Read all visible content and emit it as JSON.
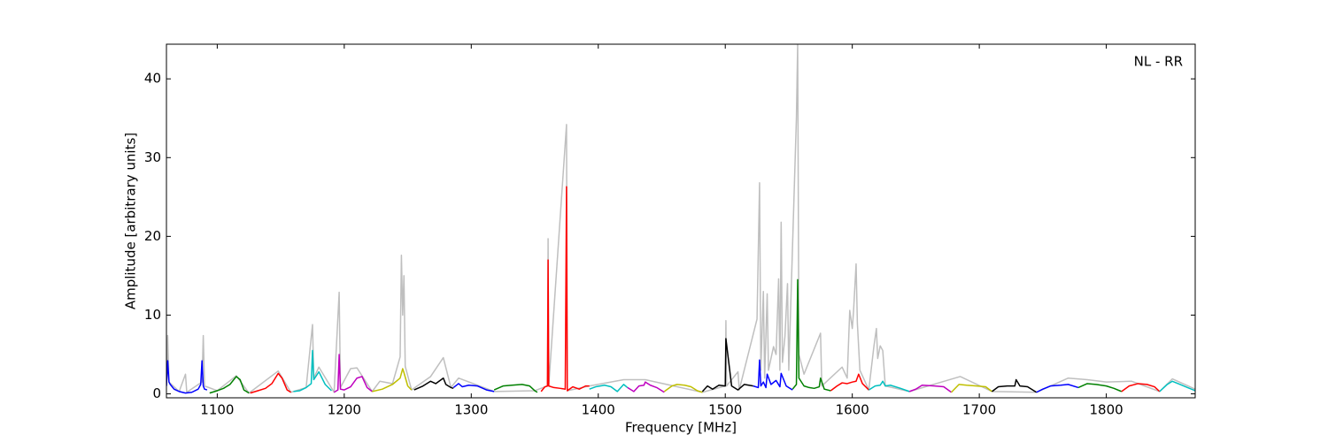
{
  "chart_data": {
    "type": "line",
    "annotation": "NL - RR",
    "x_label": "Frequency [MHz]",
    "y_label": "Amplitude [arbitrary units]",
    "xlim": [
      1060,
      1870
    ],
    "ylim": [
      -0.5,
      44.4
    ],
    "xticks": [
      1100,
      1200,
      1300,
      1400,
      1500,
      1600,
      1700,
      1800
    ],
    "yticks": [
      0,
      10,
      20,
      30,
      40
    ],
    "series": [
      {
        "color": "#bfbfbf",
        "x": [
          1060,
          1061,
          1062,
          1070,
          1075,
          1076,
          1088,
          1089,
          1090,
          1100,
          1115,
          1125,
          1148,
          1158,
          1170,
          1175,
          1176,
          1180,
          1192,
          1196,
          1197,
          1205,
          1210,
          1222,
          1228,
          1238,
          1244,
          1245,
          1246,
          1247,
          1248,
          1253,
          1268,
          1278,
          1284,
          1290,
          1318,
          1350,
          1360,
          1360.5,
          1361,
          1375,
          1375.6,
          1393,
          1420,
          1437,
          1482,
          1500,
          1500.5,
          1501,
          1510,
          1511,
          1525,
          1527,
          1528,
          1530,
          1531,
          1533,
          1534,
          1538,
          1540,
          1542,
          1543,
          1544,
          1545,
          1547,
          1549,
          1550,
          1556,
          1557,
          1558,
          1562,
          1575,
          1576,
          1592,
          1596,
          1598,
          1600,
          1601,
          1603,
          1604,
          1606,
          1613,
          1617,
          1619,
          1620,
          1622,
          1624,
          1626,
          1645,
          1685,
          1710,
          1745,
          1770,
          1785,
          1800,
          1820,
          1842,
          1852,
          1870
        ],
        "values": [
          1.0,
          7.4,
          1.5,
          0.3,
          2.5,
          0.2,
          1.5,
          7.4,
          1.0,
          0.4,
          2.3,
          0.1,
          2.9,
          0.2,
          0.8,
          8.8,
          2.0,
          3.4,
          0.2,
          12.9,
          0.8,
          3.2,
          3.3,
          0.3,
          1.6,
          1.3,
          4.7,
          17.6,
          10,
          15,
          3.5,
          0.5,
          2.2,
          4.6,
          0.8,
          2.0,
          0.3,
          0.4,
          1.0,
          19.7,
          1.0,
          34.2,
          0.4,
          1.0,
          1.8,
          1.8,
          0.2,
          1.0,
          9.3,
          1.0,
          2.8,
          0.5,
          9.5,
          26.8,
          3,
          13,
          2,
          12.7,
          3,
          6,
          5,
          14.6,
          3,
          21.8,
          4,
          7.3,
          14,
          3,
          35,
          44.4,
          5,
          2.5,
          7.7,
          1.0,
          3.4,
          2,
          10.6,
          8.3,
          10.5,
          16.5,
          9,
          3,
          0.5,
          6,
          8.3,
          4.5,
          6.1,
          5.5,
          1.0,
          0.3,
          2.2,
          0.3,
          0.2,
          2,
          1.8,
          1.5,
          1.6,
          0.3,
          1.9,
          0.6
        ]
      },
      {
        "color": "#0000ff",
        "x": [
          1060,
          1061,
          1062,
          1063,
          1066,
          1070,
          1075,
          1080,
          1085,
          1087,
          1088,
          1089,
          1090,
          1092
        ],
        "values": [
          1.0,
          4.2,
          1.5,
          1.2,
          0.6,
          0.3,
          0.1,
          0.2,
          0.6,
          1.2,
          4.2,
          1.0,
          0.6,
          0.5
        ]
      },
      {
        "color": "#008000",
        "x": [
          1094,
          1100,
          1105,
          1110,
          1115,
          1118,
          1121,
          1125
        ],
        "values": [
          0.1,
          0.4,
          0.7,
          1.2,
          2.2,
          1.8,
          0.5,
          0.1
        ]
      },
      {
        "color": "#ff0000",
        "x": [
          1126,
          1132,
          1138,
          1143,
          1148,
          1151,
          1155,
          1158
        ],
        "values": [
          0.1,
          0.4,
          0.7,
          1.3,
          2.6,
          2,
          0.5,
          0.2
        ]
      },
      {
        "color": "#00bfbf",
        "x": [
          1160,
          1165,
          1170,
          1174,
          1175,
          1176,
          1180,
          1185,
          1190
        ],
        "values": [
          0.3,
          0.4,
          0.8,
          1.3,
          5.5,
          1.8,
          2.8,
          1.2,
          0.4
        ]
      },
      {
        "color": "#bf00bf",
        "x": [
          1192,
          1195,
          1196,
          1197,
          1200,
          1205,
          1210,
          1214,
          1218,
          1222
        ],
        "values": [
          0.2,
          0.5,
          5.0,
          0.6,
          0.5,
          0.9,
          2.0,
          2.2,
          0.8,
          0.3
        ]
      },
      {
        "color": "#bfbf00",
        "x": [
          1222,
          1230,
          1238,
          1244,
          1246,
          1247,
          1250,
          1253
        ],
        "values": [
          0.3,
          0.6,
          1.2,
          2.0,
          3.2,
          2.7,
          1.0,
          0.5
        ]
      },
      {
        "color": "#000000",
        "x": [
          1255,
          1262,
          1268,
          1272,
          1278,
          1280,
          1284,
          1286
        ],
        "values": [
          0.5,
          1.0,
          1.6,
          1.3,
          2.0,
          1.2,
          0.8,
          0.7
        ]
      },
      {
        "color": "#0000ff",
        "x": [
          1286,
          1290,
          1293,
          1298,
          1305,
          1312,
          1318
        ],
        "values": [
          0.8,
          1.3,
          0.9,
          1.1,
          1.0,
          0.5,
          0.3
        ]
      },
      {
        "color": "#008000",
        "x": [
          1318,
          1325,
          1332,
          1340,
          1346,
          1350,
          1352
        ],
        "values": [
          0.5,
          1.0,
          1.1,
          1.2,
          1.0,
          0.4,
          0.2
        ]
      },
      {
        "color": "#ff0000",
        "x": [
          1355,
          1358,
          1360,
          1360.5,
          1361,
          1365,
          1370,
          1374,
          1375,
          1375.6,
          1380,
          1385,
          1390,
          1393
        ],
        "values": [
          0.3,
          0.9,
          1.0,
          17.0,
          1.0,
          0.8,
          0.7,
          0.6,
          26.3,
          0.4,
          0.9,
          0.6,
          1.0,
          1.0
        ]
      },
      {
        "color": "#00bfbf",
        "x": [
          1393,
          1398,
          1405,
          1410,
          1415,
          1420,
          1423
        ],
        "values": [
          0.6,
          0.9,
          1.1,
          0.9,
          0.3,
          1.2,
          0.8
        ]
      },
      {
        "color": "#bf00bf",
        "x": [
          1423,
          1428,
          1432,
          1436,
          1437,
          1441,
          1446,
          1452
        ],
        "values": [
          0.8,
          0.3,
          1.0,
          1.1,
          1.5,
          1.1,
          0.8,
          0.2
        ]
      },
      {
        "color": "#bfbf00",
        "x": [
          1452,
          1458,
          1462,
          1468,
          1473,
          1478,
          1482
        ],
        "values": [
          0.3,
          1.0,
          1.2,
          1.1,
          0.9,
          0.4,
          0.2
        ]
      },
      {
        "color": "#000000",
        "x": [
          1482,
          1486,
          1490,
          1495,
          1500,
          1500.5,
          1505,
          1510,
          1515,
          1522
        ],
        "values": [
          0.3,
          1.0,
          0.6,
          1.1,
          1.0,
          7.0,
          1.0,
          0.5,
          1.2,
          1.0
        ]
      },
      {
        "color": "#0000ff",
        "x": [
          1522,
          1526,
          1527,
          1528,
          1530,
          1532,
          1533,
          1536,
          1540,
          1543,
          1544,
          1548,
          1553
        ],
        "values": [
          1.0,
          0.8,
          4.3,
          1.0,
          1.5,
          0.8,
          2.5,
          1.2,
          1.7,
          0.9,
          2.6,
          1.0,
          0.5
        ]
      },
      {
        "color": "#008000",
        "x": [
          1553,
          1556,
          1557,
          1558,
          1562,
          1566,
          1570,
          1574,
          1575,
          1578,
          1583
        ],
        "values": [
          0.6,
          1.2,
          14.5,
          2.0,
          1.0,
          0.8,
          0.7,
          0.9,
          2.0,
          0.6,
          0.4
        ]
      },
      {
        "color": "#ff0000",
        "x": [
          1583,
          1588,
          1592,
          1596,
          1600,
          1603,
          1605,
          1608,
          1613
        ],
        "values": [
          0.4,
          1.0,
          1.4,
          1.3,
          1.5,
          1.6,
          2.5,
          1.3,
          0.5
        ]
      },
      {
        "color": "#00bfbf",
        "x": [
          1613,
          1618,
          1622,
          1624,
          1626,
          1630,
          1638,
          1645
        ],
        "values": [
          0.5,
          1.0,
          1.1,
          1.6,
          1.0,
          1.1,
          0.7,
          0.3
        ]
      },
      {
        "color": "#bf00bf",
        "x": [
          1645,
          1650,
          1655,
          1665,
          1672,
          1678
        ],
        "values": [
          0.3,
          0.6,
          1.1,
          1.0,
          0.9,
          0.2
        ]
      },
      {
        "color": "#bfbf00",
        "x": [
          1678,
          1684,
          1690,
          1698,
          1705,
          1710
        ],
        "values": [
          0.2,
          1.2,
          1.1,
          1.0,
          0.9,
          0.3
        ]
      },
      {
        "color": "#000000",
        "x": [
          1710,
          1715,
          1722,
          1728,
          1729,
          1732,
          1738,
          1745
        ],
        "values": [
          0.3,
          0.9,
          1.0,
          1.0,
          1.8,
          1.0,
          0.9,
          0.2
        ]
      },
      {
        "color": "#0000ff",
        "x": [
          1745,
          1750,
          1756,
          1764,
          1770,
          1778
        ],
        "values": [
          0.2,
          0.6,
          1.0,
          1.1,
          1.2,
          0.8
        ]
      },
      {
        "color": "#008000",
        "x": [
          1778,
          1785,
          1792,
          1800,
          1806,
          1812
        ],
        "values": [
          0.8,
          1.3,
          1.2,
          1.0,
          0.7,
          0.3
        ]
      },
      {
        "color": "#ff0000",
        "x": [
          1812,
          1818,
          1825,
          1832,
          1838,
          1842
        ],
        "values": [
          0.3,
          1.0,
          1.3,
          1.2,
          0.9,
          0.3
        ]
      },
      {
        "color": "#00bfbf",
        "x": [
          1842,
          1848,
          1852,
          1858,
          1864,
          1870
        ],
        "values": [
          0.3,
          1.2,
          1.6,
          1.2,
          0.8,
          0.4
        ]
      }
    ]
  }
}
